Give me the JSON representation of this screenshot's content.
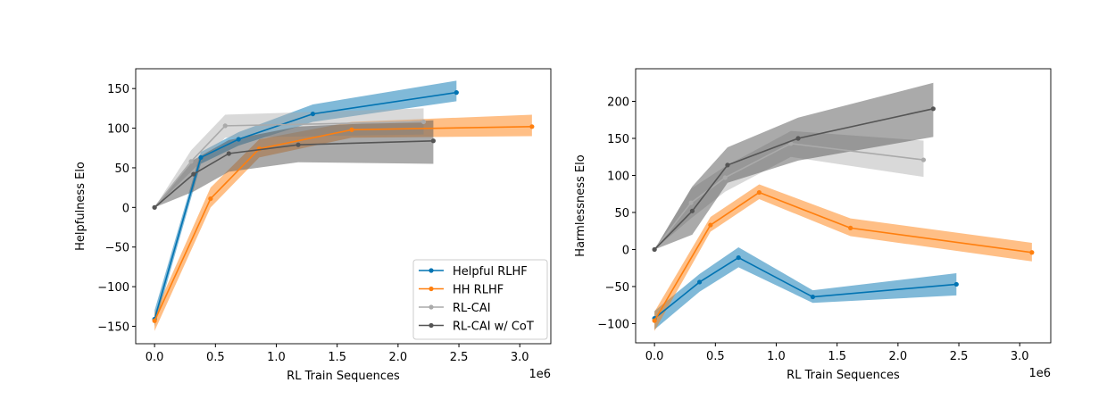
{
  "chart_data": [
    {
      "type": "line",
      "xlabel": "RL Train Sequences",
      "ylabel": "Helpfulness Elo",
      "x_scale_label": "1e6",
      "xlim": [
        -155000,
        3255000
      ],
      "ylim": [
        -172,
        175
      ],
      "xticks": [
        0,
        500000,
        1000000,
        1500000,
        2000000,
        2500000,
        3000000
      ],
      "xtick_labels": [
        "0.0",
        "0.5",
        "1.0",
        "1.5",
        "2.0",
        "2.5",
        "3.0"
      ],
      "yticks": [
        -150,
        -100,
        -50,
        0,
        50,
        100,
        150
      ],
      "ytick_labels": [
        "−150",
        "−100",
        "−50",
        "0",
        "50",
        "100",
        "150"
      ],
      "grid": false,
      "legend_position": "bottom-right",
      "series": [
        {
          "name": "Helpful RLHF",
          "color": "#0173b2",
          "x": [
            0,
            380000,
            690000,
            1300000,
            2480000
          ],
          "y": [
            -141,
            63,
            86,
            118,
            145
          ],
          "lower": [
            -150,
            55,
            78,
            108,
            134
          ],
          "upper": [
            -130,
            70,
            95,
            130,
            160
          ]
        },
        {
          "name": "HH RLHF",
          "color": "#ff7f0e",
          "x": [
            0,
            460000,
            860000,
            1620000,
            3100000
          ],
          "y": [
            -143,
            11,
            74,
            98,
            102
          ],
          "lower": [
            -156,
            0,
            63,
            88,
            90
          ],
          "upper": [
            -134,
            25,
            86,
            108,
            117
          ]
        },
        {
          "name": "RL-CAI",
          "color": "#aaaaaa",
          "x": [
            0,
            300000,
            580000,
            2210000
          ],
          "y": [
            0,
            58,
            103,
            108
          ],
          "lower": [
            0,
            45,
            88,
            92
          ],
          "upper": [
            0,
            72,
            117,
            125
          ]
        },
        {
          "name": "RL-CAI w/ CoT",
          "color": "#555555",
          "x": [
            0,
            320000,
            610000,
            1180000,
            2290000
          ],
          "y": [
            0,
            42,
            68,
            79,
            84
          ],
          "lower": [
            0,
            20,
            45,
            57,
            55
          ],
          "upper": [
            0,
            60,
            85,
            102,
            110
          ]
        }
      ]
    },
    {
      "type": "line",
      "xlabel": "RL Train Sequences",
      "ylabel": "Harmlessness Elo",
      "x_scale_label": "1e6",
      "xlim": [
        -155000,
        3255000
      ],
      "ylim": [
        -126,
        244
      ],
      "xticks": [
        0,
        500000,
        1000000,
        1500000,
        2000000,
        2500000,
        3000000
      ],
      "xtick_labels": [
        "0.0",
        "0.5",
        "1.0",
        "1.5",
        "2.0",
        "2.5",
        "3.0"
      ],
      "yticks": [
        -100,
        -50,
        0,
        50,
        100,
        150,
        200
      ],
      "ytick_labels": [
        "−100",
        "−50",
        "0",
        "50",
        "100",
        "150",
        "200"
      ],
      "grid": false,
      "series": [
        {
          "name": "Helpful RLHF",
          "color": "#0173b2",
          "x": [
            0,
            370000,
            690000,
            1300000,
            2480000
          ],
          "y": [
            -93,
            -44,
            -11,
            -64,
            -47
          ],
          "lower": [
            -108,
            -57,
            -24,
            -72,
            -62
          ],
          "upper": [
            -83,
            -33,
            3,
            -55,
            -32
          ]
        },
        {
          "name": "HH RLHF",
          "color": "#ff7f0e",
          "x": [
            0,
            460000,
            860000,
            1610000,
            3100000
          ],
          "y": [
            -96,
            33,
            77,
            29,
            -4
          ],
          "lower": [
            -110,
            24,
            68,
            18,
            -16
          ],
          "upper": [
            -84,
            44,
            88,
            42,
            9
          ]
        },
        {
          "name": "RL-CAI",
          "color": "#aaaaaa",
          "x": [
            0,
            300000,
            580000,
            1120000,
            2210000
          ],
          "y": [
            0,
            63,
            97,
            143,
            121
          ],
          "lower": [
            0,
            42,
            78,
            125,
            98
          ],
          "upper": [
            0,
            82,
            112,
            160,
            147
          ]
        },
        {
          "name": "RL-CAI w/ CoT",
          "color": "#555555",
          "x": [
            0,
            310000,
            600000,
            1180000,
            2290000
          ],
          "y": [
            0,
            52,
            114,
            150,
            190
          ],
          "lower": [
            0,
            20,
            90,
            120,
            152
          ],
          "upper": [
            0,
            85,
            138,
            178,
            225
          ]
        }
      ]
    }
  ]
}
